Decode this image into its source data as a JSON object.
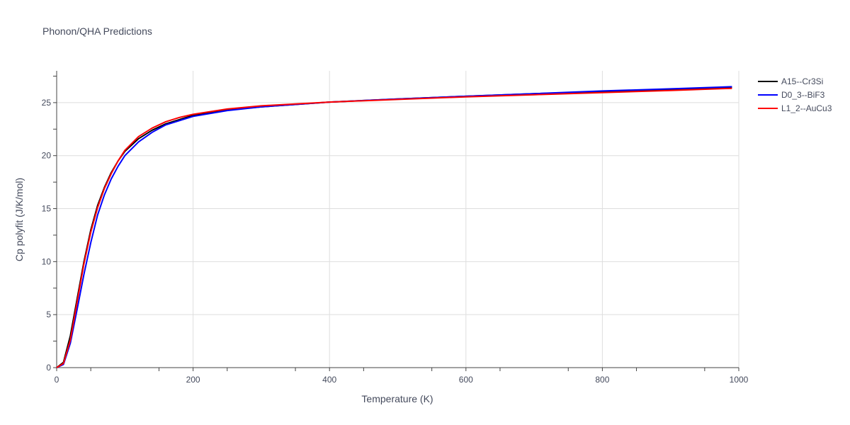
{
  "chart_data": {
    "type": "line",
    "title": "Phonon/QHA Predictions",
    "xlabel": "Temperature (K)",
    "ylabel": "Cp polyfit (J/K/mol)",
    "xlim": [
      0,
      1000
    ],
    "ylim": [
      0,
      28
    ],
    "x_ticks": [
      0,
      200,
      400,
      600,
      800,
      1000
    ],
    "y_ticks": [
      0,
      5,
      10,
      15,
      20,
      25
    ],
    "grid": true,
    "legend_position": "top-right",
    "series": [
      {
        "name": "A15--Cr3Si",
        "color": "#000000",
        "x": [
          0,
          10,
          20,
          30,
          40,
          50,
          60,
          70,
          80,
          90,
          100,
          120,
          140,
          160,
          180,
          200,
          250,
          300,
          400,
          500,
          600,
          700,
          800,
          900,
          990
        ],
        "y": [
          0,
          0.5,
          3.0,
          6.5,
          10.0,
          13.0,
          15.3,
          17.0,
          18.4,
          19.5,
          20.4,
          21.6,
          22.4,
          23.0,
          23.4,
          23.8,
          24.3,
          24.6,
          25.05,
          25.35,
          25.6,
          25.85,
          26.05,
          26.25,
          26.45
        ]
      },
      {
        "name": "D0_3--BiF3",
        "color": "#0000ff",
        "x": [
          0,
          10,
          20,
          30,
          40,
          50,
          60,
          70,
          80,
          90,
          100,
          120,
          140,
          160,
          180,
          200,
          250,
          300,
          400,
          500,
          600,
          700,
          800,
          900,
          990
        ],
        "y": [
          0,
          0.3,
          2.3,
          5.5,
          8.8,
          11.8,
          14.4,
          16.3,
          17.8,
          19.0,
          20.0,
          21.3,
          22.2,
          22.9,
          23.3,
          23.7,
          24.25,
          24.6,
          25.05,
          25.35,
          25.6,
          25.85,
          26.1,
          26.3,
          26.5
        ]
      },
      {
        "name": "L1_2--AuCu3",
        "color": "#ff0000",
        "x": [
          0,
          10,
          20,
          30,
          40,
          50,
          60,
          70,
          80,
          90,
          100,
          120,
          140,
          160,
          180,
          200,
          250,
          300,
          400,
          500,
          600,
          700,
          800,
          900,
          990
        ],
        "y": [
          0,
          0.4,
          2.6,
          6.2,
          9.8,
          12.8,
          15.1,
          16.9,
          18.3,
          19.5,
          20.5,
          21.8,
          22.6,
          23.2,
          23.6,
          23.9,
          24.4,
          24.7,
          25.05,
          25.3,
          25.55,
          25.75,
          25.95,
          26.15,
          26.35
        ]
      }
    ]
  }
}
